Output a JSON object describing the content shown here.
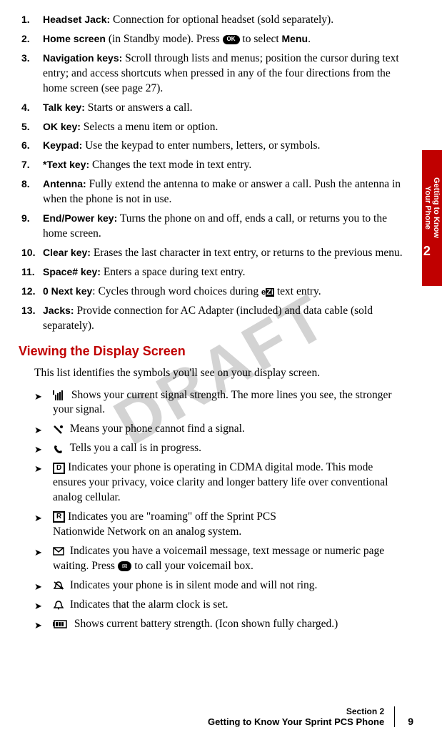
{
  "watermark": "DRAFT",
  "side_tab": {
    "line1": "Getting to Know",
    "line2": "Your Phone",
    "num": "2"
  },
  "items": [
    {
      "num": "1.",
      "label": "Headset Jack:",
      "text": " Connection for optional headset (sold separately)."
    },
    {
      "num": "2.",
      "label": "Home screen",
      "text": " (in Standby mode). Press ",
      "post_icon": " to select ",
      "bold2": "Menu",
      "tail": "."
    },
    {
      "num": "3.",
      "label": "Navigation keys:",
      "text": " Scroll through lists and menus; position the cursor during text entry; and access shortcuts when pressed in any of the four directions from the home screen (see page 27)."
    },
    {
      "num": "4.",
      "label": "Talk key:",
      "text": " Starts or answers a call."
    },
    {
      "num": "5.",
      "label": "OK key:",
      "text": " Selects a menu item or option."
    },
    {
      "num": "6.",
      "label": "Keypad:",
      "text": " Use the keypad to enter numbers, letters, or symbols."
    },
    {
      "num": "7.",
      "label": "*Text key:",
      "text": " Changes the text mode in text entry."
    },
    {
      "num": "8.",
      "label": "Antenna:",
      "text": " Fully extend the antenna to make or answer a call. Push the antenna in when the phone is not in use."
    },
    {
      "num": "9.",
      "label": "End/Power key:",
      "text": " Turns the phone on and off, ends a call, or returns you to the home screen."
    },
    {
      "num": "10.",
      "label": "Clear key:",
      "text": " Erases the last character in text entry, or returns to the previous menu."
    },
    {
      "num": "11.",
      "label": " Space# key:",
      "text": " Enters a space during text entry."
    },
    {
      "num": "12.",
      "label": " 0 Next key",
      "text": ": Cycles through word choices during ",
      "ezi": true,
      "tail": " text entry."
    },
    {
      "num": "13.",
      "label": "Jacks:",
      "text": " Provide connection for AC Adapter (included) and data cable (sold separately)."
    }
  ],
  "section_heading": "Viewing the Display Screen",
  "intro": "This list identifies the symbols you'll see on your display screen.",
  "bullets": [
    {
      "icon": "signal",
      "text": " Shows your current signal strength. The more lines you see, the stronger your signal."
    },
    {
      "icon": "nosignal",
      "text": "  Means your phone cannot find a signal."
    },
    {
      "icon": "call",
      "text": " Tells you a call is in progress."
    },
    {
      "icon": "D",
      "text": " Indicates your phone is operating in CDMA digital mode. This mode ensures your privacy, voice clarity and longer battery life over conventional analog cellular."
    },
    {
      "icon": "R",
      "text": " Indicates you are \"roaming\" off the Sprint PCS",
      "text2": "Nationwide Network on an analog system."
    },
    {
      "icon": "msg",
      "text": " Indicates you have a voicemail message, text message or numeric page waiting. Press ",
      "env": true,
      "tail": " to call your voicemail box."
    },
    {
      "icon": "silent",
      "text": " Indicates your phone is in silent mode and will not ring."
    },
    {
      "icon": "alarm",
      "text": " Indicates that the alarm clock is set."
    },
    {
      "icon": "battery",
      "text": " Shows current battery strength. (Icon shown fully charged.)"
    }
  ],
  "footer": {
    "sec": "Section 2",
    "title": "Getting to Know Your Sprint PCS Phone",
    "page": "9"
  }
}
